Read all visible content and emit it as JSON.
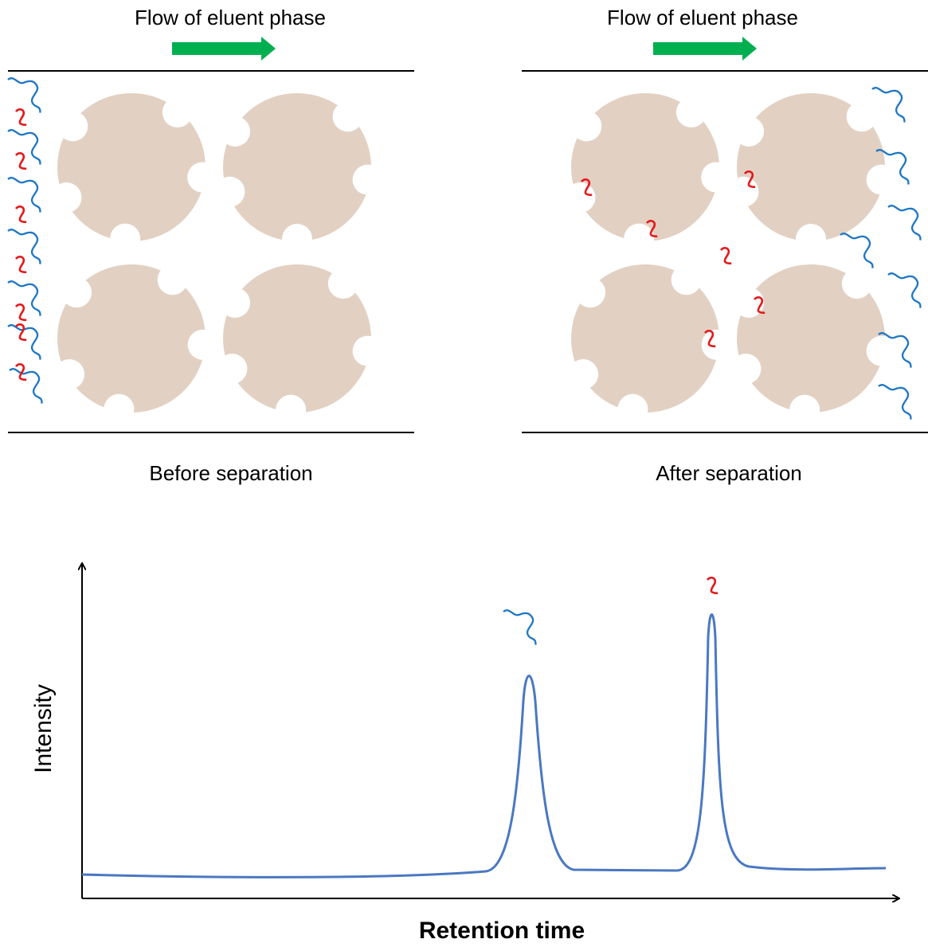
{
  "panels": [
    {
      "flow_label": "Flow of eluent phase",
      "caption": "Before separation"
    },
    {
      "flow_label": "Flow of eluent phase",
      "caption": "After separation"
    }
  ],
  "chromatogram": {
    "y_label": "Intensity",
    "x_label": "Retention time"
  }
}
